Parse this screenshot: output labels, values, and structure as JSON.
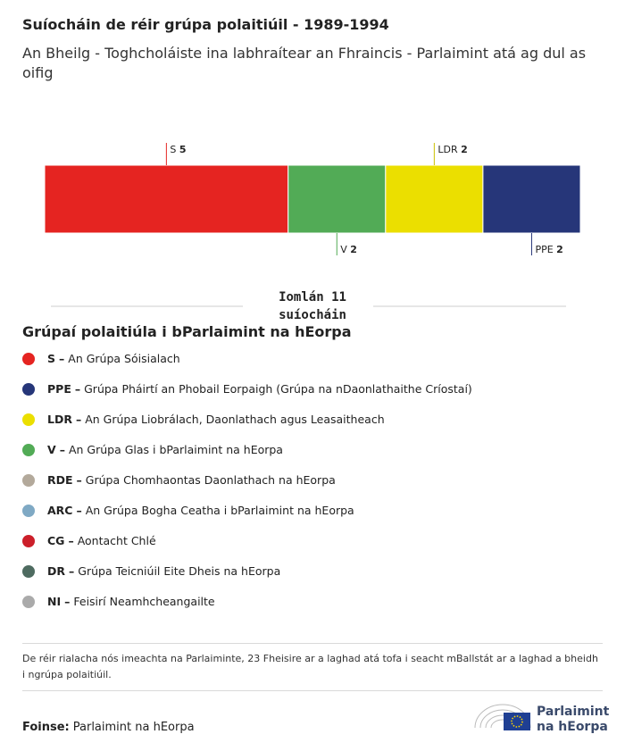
{
  "chart_data": {
    "type": "stacked-bar",
    "title": "Suíocháin de réir grúpa polaitiúil - 1989-1994",
    "subtitle": "An Bheilg - Toghcholáiste ina labhraítear an Fhraincis - Parlaimint atá ag dul as oifig",
    "series": [
      {
        "name": "S",
        "color": "#e52421",
        "values": [
          5
        ]
      },
      {
        "name": "V",
        "color": "#52ab56",
        "values": [
          2
        ]
      },
      {
        "name": "LDR",
        "color": "#ebdf00",
        "values": [
          2
        ]
      },
      {
        "name": "PPE",
        "color": "#263679",
        "values": [
          2
        ]
      }
    ],
    "total_prefix": "Iomlán",
    "total": 11,
    "total_suffix": "suíocháin"
  },
  "legend": {
    "title": "Grúpaí polaitiúla i bParlaimint na hEorpa",
    "separator": "–",
    "items": [
      {
        "abbr": "S",
        "name": "An Grúpa Sóisialach",
        "color": "#e52421"
      },
      {
        "abbr": "PPE",
        "name": "Grúpa Pháirtí an Phobail Eorpaigh (Grúpa na nDaonlathaithe Críostaí)",
        "color": "#263679"
      },
      {
        "abbr": "LDR",
        "name": "An Grúpa Liobrálach, Daonlathach agus Leasaitheach",
        "color": "#ebdf00"
      },
      {
        "abbr": "V",
        "name": "An Grúpa Glas i bParlaimint na hEorpa",
        "color": "#52ab56"
      },
      {
        "abbr": "RDE",
        "name": "Grúpa Chomhaontas Daonlathach na hEorpa",
        "color": "#b3a99b"
      },
      {
        "abbr": "ARC",
        "name": "An Grúpa Bogha Ceatha i bParlaimint na hEorpa",
        "color": "#7fa9c4"
      },
      {
        "abbr": "CG",
        "name": "Aontacht Chlé",
        "color": "#cc1f2a"
      },
      {
        "abbr": "DR",
        "name": "Grúpa Teicniúil Eite Dheis na hEorpa",
        "color": "#4e6b60"
      },
      {
        "abbr": "NI",
        "name": "Feisirí Neamhcheangailte",
        "color": "#aaaaaa"
      }
    ]
  },
  "note": "De réir rialacha nós imeachta na Parlaiminte, 23 Fheisire ar a laghad atá tofa i seacht mBallstát ar a laghad a bheidh i ngrúpa polaitiúil.",
  "source": {
    "label": "Foinse:",
    "text": "Parlaimint na hEorpa"
  },
  "logo": {
    "line1": "Parlaimint",
    "line2": "na hEorpa"
  }
}
